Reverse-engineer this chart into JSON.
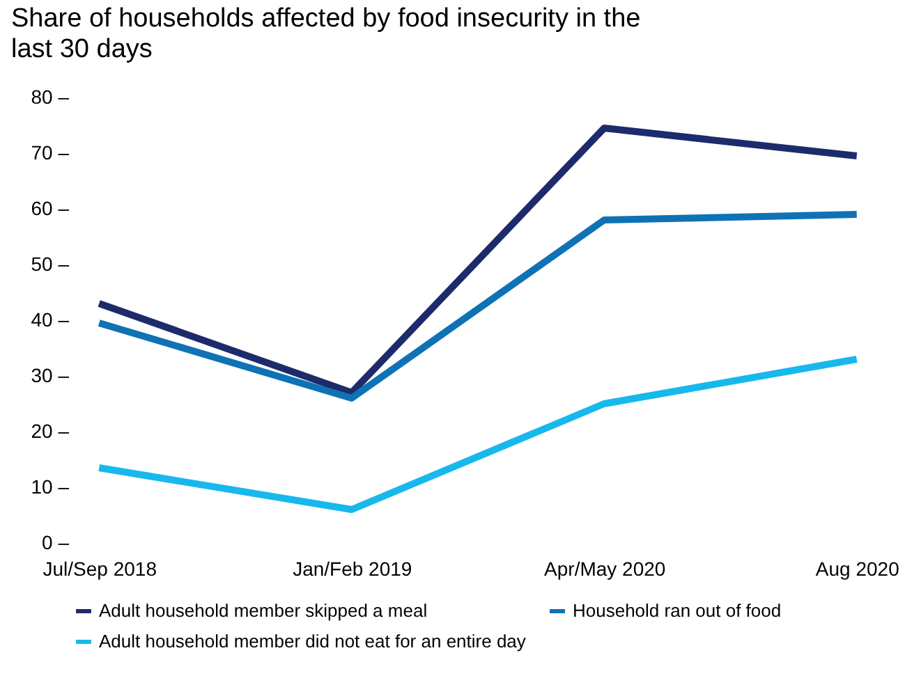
{
  "chart_data": {
    "type": "line",
    "title": "Share of households affected by food insecurity in the last 30 days",
    "categories": [
      "Jul/Sep 2018",
      "Jan/Feb 2019",
      "Apr/May 2020",
      "Aug 2020"
    ],
    "series": [
      {
        "name": "Adult household member skipped a meal",
        "color": "#1d2b6b",
        "values": [
          43,
          27,
          74.5,
          69.5
        ]
      },
      {
        "name": "Household ran out of food",
        "color": "#0f72b5",
        "values": [
          39.5,
          26,
          58,
          59
        ]
      },
      {
        "name": "Adult household member did not eat for an entire day",
        "color": "#17b8ec",
        "values": [
          13.5,
          6,
          25,
          33
        ]
      }
    ],
    "ylim": [
      0,
      80
    ],
    "yticks": [
      {
        "value": 0,
        "label": "0 –"
      },
      {
        "value": 10,
        "label": "10 –"
      },
      {
        "value": 20,
        "label": "20 –"
      },
      {
        "value": 30,
        "label": "30 –"
      },
      {
        "value": 40,
        "label": "40 –"
      },
      {
        "value": 50,
        "label": "50 –"
      },
      {
        "value": 60,
        "label": "60 –"
      },
      {
        "value": 70,
        "label": "70 –"
      },
      {
        "value": 80,
        "label": "80 –"
      }
    ],
    "grid": false,
    "legend": "bottom",
    "marker": "none",
    "line_style": "solid"
  }
}
